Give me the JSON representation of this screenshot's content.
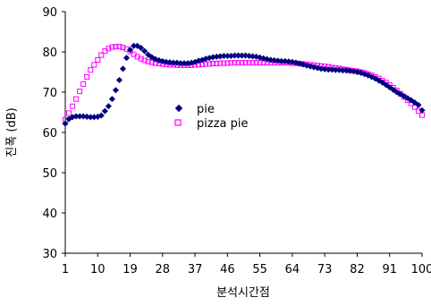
{
  "chart_data": {
    "type": "scatter",
    "title": "",
    "xlabel": "분석시간점",
    "ylabel": "진폭 (dB)",
    "xlim": [
      1,
      100
    ],
    "ylim": [
      30,
      90
    ],
    "yticks": [
      30,
      40,
      50,
      60,
      70,
      80,
      90
    ],
    "xticks": [
      1,
      10,
      19,
      28,
      37,
      46,
      55,
      64,
      73,
      82,
      91,
      100
    ],
    "grid": false,
    "legend_position": "center",
    "series": [
      {
        "name": "pie",
        "color": "#000080",
        "marker": "diamond",
        "x": [
          1,
          2,
          3,
          4,
          5,
          6,
          7,
          8,
          9,
          10,
          11,
          12,
          13,
          14,
          15,
          16,
          17,
          18,
          19,
          20,
          21,
          22,
          23,
          24,
          25,
          26,
          27,
          28,
          29,
          30,
          31,
          32,
          33,
          34,
          35,
          36,
          37,
          38,
          39,
          40,
          41,
          42,
          43,
          44,
          45,
          46,
          47,
          48,
          49,
          50,
          51,
          52,
          53,
          54,
          55,
          56,
          57,
          58,
          59,
          60,
          61,
          62,
          63,
          64,
          65,
          66,
          67,
          68,
          69,
          70,
          71,
          72,
          73,
          74,
          75,
          76,
          77,
          78,
          79,
          80,
          81,
          82,
          83,
          84,
          85,
          86,
          87,
          88,
          89,
          90,
          91,
          92,
          93,
          94,
          95,
          96,
          97,
          98,
          99,
          100
        ],
        "values": [
          62.2,
          63.3,
          63.8,
          64.0,
          64.0,
          64.0,
          63.9,
          63.8,
          63.8,
          63.9,
          64.2,
          65.3,
          66.5,
          68.3,
          70.5,
          73.0,
          75.8,
          78.5,
          80.5,
          81.5,
          81.5,
          81.0,
          80.2,
          79.3,
          78.7,
          78.2,
          77.9,
          77.7,
          77.5,
          77.4,
          77.3,
          77.3,
          77.2,
          77.2,
          77.2,
          77.3,
          77.5,
          77.8,
          78.0,
          78.3,
          78.5,
          78.7,
          78.8,
          78.9,
          79.0,
          79.0,
          79.0,
          79.1,
          79.1,
          79.1,
          79.1,
          79.0,
          78.9,
          78.8,
          78.6,
          78.4,
          78.2,
          78.0,
          77.9,
          77.8,
          77.7,
          77.7,
          77.6,
          77.5,
          77.3,
          77.1,
          76.9,
          76.6,
          76.4,
          76.2,
          76.0,
          75.8,
          75.7,
          75.6,
          75.6,
          75.5,
          75.5,
          75.4,
          75.4,
          75.3,
          75.2,
          75.0,
          74.8,
          74.5,
          74.2,
          73.8,
          73.4,
          72.9,
          72.4,
          71.8,
          71.2,
          70.6,
          70.0,
          69.5,
          69.0,
          68.5,
          68.0,
          67.4,
          66.8,
          65.5
        ]
      },
      {
        "name": "pizza pie",
        "color": "#ff00ff",
        "marker": "square-open",
        "x": [
          1,
          2,
          3,
          4,
          5,
          6,
          7,
          8,
          9,
          10,
          11,
          12,
          13,
          14,
          15,
          16,
          17,
          18,
          19,
          20,
          21,
          22,
          23,
          24,
          25,
          26,
          27,
          28,
          29,
          30,
          31,
          32,
          33,
          34,
          35,
          36,
          37,
          38,
          39,
          40,
          41,
          42,
          43,
          44,
          45,
          46,
          47,
          48,
          49,
          50,
          51,
          52,
          53,
          54,
          55,
          56,
          57,
          58,
          59,
          60,
          61,
          62,
          63,
          64,
          65,
          66,
          67,
          68,
          69,
          70,
          71,
          72,
          73,
          74,
          75,
          76,
          77,
          78,
          79,
          80,
          81,
          82,
          83,
          84,
          85,
          86,
          87,
          88,
          89,
          90,
          91,
          92,
          93,
          94,
          95,
          96,
          97,
          98,
          99,
          100
        ],
        "values": [
          63.2,
          64.8,
          66.5,
          68.3,
          70.2,
          72.0,
          73.8,
          75.5,
          76.8,
          78.0,
          79.2,
          80.2,
          80.8,
          81.2,
          81.3,
          81.3,
          81.1,
          80.7,
          80.1,
          79.4,
          78.8,
          78.3,
          77.9,
          77.6,
          77.4,
          77.2,
          77.1,
          77.0,
          76.9,
          76.8,
          76.8,
          76.7,
          76.7,
          76.7,
          76.7,
          76.7,
          76.8,
          76.8,
          76.9,
          77.0,
          77.0,
          77.1,
          77.1,
          77.2,
          77.2,
          77.2,
          77.3,
          77.3,
          77.3,
          77.3,
          77.3,
          77.3,
          77.3,
          77.3,
          77.3,
          77.3,
          77.3,
          77.3,
          77.3,
          77.3,
          77.3,
          77.3,
          77.3,
          77.2,
          77.2,
          77.1,
          77.0,
          76.9,
          76.8,
          76.7,
          76.6,
          76.5,
          76.4,
          76.3,
          76.1,
          76.0,
          75.9,
          75.7,
          75.6,
          75.4,
          75.3,
          75.2,
          75.0,
          74.8,
          74.5,
          74.2,
          73.8,
          73.4,
          72.9,
          72.4,
          71.8,
          71.1,
          70.4,
          69.6,
          68.8,
          68.0,
          67.2,
          66.3,
          65.3,
          64.3
        ]
      }
    ]
  }
}
